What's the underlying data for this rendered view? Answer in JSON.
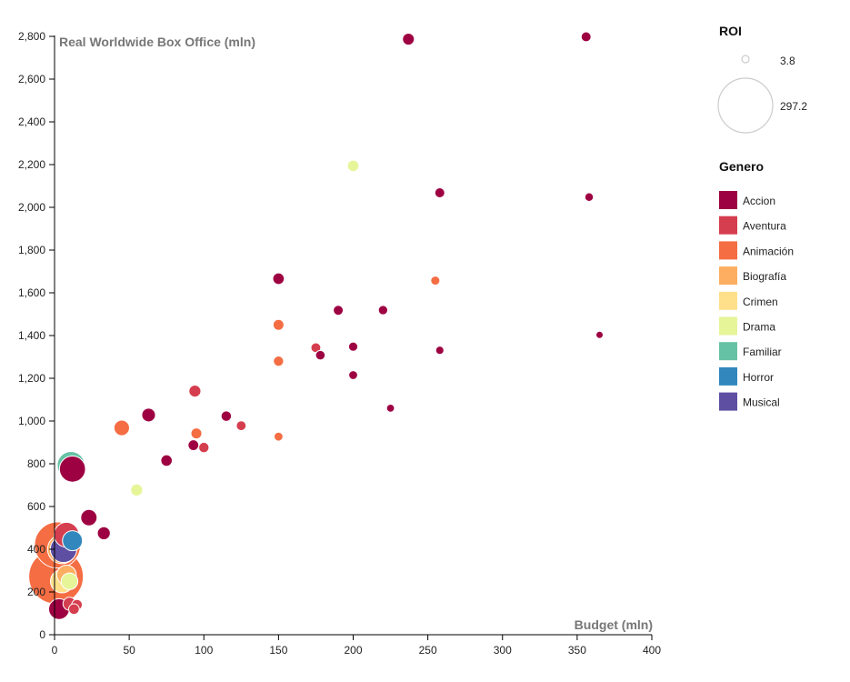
{
  "chart_data": {
    "type": "scatter",
    "xlabel": "Budget (mln)",
    "ylabel": "Real Worldwide Box Office (mln)",
    "xlim": [
      0,
      400
    ],
    "ylim": [
      0,
      2800
    ],
    "x_ticks": [
      0,
      50,
      100,
      150,
      200,
      250,
      300,
      350,
      400
    ],
    "y_ticks": [
      0,
      200,
      400,
      600,
      800,
      1000,
      1200,
      1400,
      1600,
      1800,
      2000,
      2200,
      2400,
      2600,
      2800
    ],
    "x_tick_labels": [
      "0",
      "50",
      "100",
      "150",
      "200",
      "250",
      "300",
      "350",
      "400"
    ],
    "y_tick_labels": [
      "0",
      "200",
      "400",
      "600",
      "800",
      "1,000",
      "1,200",
      "1,400",
      "1,600",
      "1,800",
      "2,000",
      "2,200",
      "2,400",
      "2,600",
      "2,800"
    ],
    "size_legend": {
      "title": "ROI",
      "min_label": "3.8",
      "max_label": "297.2",
      "min": 3.8,
      "max": 297.2
    },
    "color_legend": {
      "title": "Genero",
      "entries": [
        {
          "name": "Accion",
          "color": "#9e0142"
        },
        {
          "name": "Aventura",
          "color": "#d53e4f"
        },
        {
          "name": "Animación",
          "color": "#f46d43"
        },
        {
          "name": "Biografía",
          "color": "#fdae61"
        },
        {
          "name": "Crimen",
          "color": "#fee08b"
        },
        {
          "name": "Drama",
          "color": "#e6f598"
        },
        {
          "name": "Familiar",
          "color": "#66c2a5"
        },
        {
          "name": "Horror",
          "color": "#3288bd"
        },
        {
          "name": "Musical",
          "color": "#5e4fa2"
        }
      ]
    },
    "points": [
      {
        "budget": 237,
        "box_office": 2787,
        "genre": "Accion",
        "roi": 11.8
      },
      {
        "budget": 356,
        "box_office": 2798,
        "genre": "Accion",
        "roi": 7.9
      },
      {
        "budget": 258,
        "box_office": 2068,
        "genre": "Accion",
        "roi": 8.0
      },
      {
        "budget": 358,
        "box_office": 2048,
        "genre": "Accion",
        "roi": 5.7
      },
      {
        "budget": 365,
        "box_office": 1403,
        "genre": "Accion",
        "roi": 3.8
      },
      {
        "budget": 150,
        "box_office": 1666,
        "genre": "Accion",
        "roi": 11.1
      },
      {
        "budget": 190,
        "box_office": 1518,
        "genre": "Accion",
        "roi": 8.0
      },
      {
        "budget": 220,
        "box_office": 1519,
        "genre": "Accion",
        "roi": 6.9
      },
      {
        "budget": 178,
        "box_office": 1308,
        "genre": "Accion",
        "roi": 7.3
      },
      {
        "budget": 200,
        "box_office": 1348,
        "genre": "Accion",
        "roi": 6.7
      },
      {
        "budget": 258,
        "box_office": 1331,
        "genre": "Accion",
        "roi": 5.2
      },
      {
        "budget": 200,
        "box_office": 1215,
        "genre": "Accion",
        "roi": 6.1
      },
      {
        "budget": 225,
        "box_office": 1060,
        "genre": "Accion",
        "roi": 4.7
      },
      {
        "budget": 63,
        "box_office": 1028,
        "genre": "Accion",
        "roi": 16.3
      },
      {
        "budget": 115,
        "box_office": 1023,
        "genre": "Accion",
        "roi": 8.9
      },
      {
        "budget": 93,
        "box_office": 887,
        "genre": "Accion",
        "roi": 9.5
      },
      {
        "budget": 75,
        "box_office": 815,
        "genre": "Accion",
        "roi": 10.9
      },
      {
        "budget": 12,
        "box_office": 775,
        "genre": "Accion",
        "roi": 64.6
      },
      {
        "budget": 23,
        "box_office": 548,
        "genre": "Accion",
        "roi": 23.8
      },
      {
        "budget": 33,
        "box_office": 475,
        "genre": "Accion",
        "roi": 14.4
      },
      {
        "budget": 3,
        "box_office": 120,
        "genre": "Accion",
        "roi": 40.0
      },
      {
        "budget": 94,
        "box_office": 1140,
        "genre": "Aventura",
        "roi": 12.1
      },
      {
        "budget": 175,
        "box_office": 1343,
        "genre": "Aventura",
        "roi": 7.7
      },
      {
        "budget": 125,
        "box_office": 978,
        "genre": "Aventura",
        "roi": 7.8
      },
      {
        "budget": 100,
        "box_office": 876,
        "genre": "Aventura",
        "roi": 8.8
      },
      {
        "budget": 8,
        "box_office": 468,
        "genre": "Aventura",
        "roi": 58.5
      },
      {
        "budget": 15,
        "box_office": 140,
        "genre": "Aventura",
        "roi": 9.3
      },
      {
        "budget": 13,
        "box_office": 120,
        "genre": "Aventura",
        "roi": 9.2
      },
      {
        "budget": 10,
        "box_office": 145,
        "genre": "Aventura",
        "roi": 14.5
      },
      {
        "budget": 150,
        "box_office": 1450,
        "genre": "Animación",
        "roi": 9.7
      },
      {
        "budget": 150,
        "box_office": 1280,
        "genre": "Animación",
        "roi": 8.5
      },
      {
        "budget": 255,
        "box_office": 1657,
        "genre": "Animación",
        "roi": 6.5
      },
      {
        "budget": 45,
        "box_office": 968,
        "genre": "Animación",
        "roi": 21.5
      },
      {
        "budget": 95,
        "box_office": 942,
        "genre": "Animación",
        "roi": 9.9
      },
      {
        "budget": 150,
        "box_office": 927,
        "genre": "Animación",
        "roi": 6.2
      },
      {
        "budget": 2,
        "box_office": 420,
        "genre": "Animación",
        "roi": 210.0
      },
      {
        "budget": 1,
        "box_office": 272,
        "genre": "Animación",
        "roi": 297.2
      },
      {
        "budget": 5,
        "box_office": 400,
        "genre": "Biografía",
        "roi": 80.0
      },
      {
        "budget": 8,
        "box_office": 280,
        "genre": "Biografía",
        "roi": 35.0
      },
      {
        "budget": 5,
        "box_office": 250,
        "genre": "Crimen",
        "roi": 50.0
      },
      {
        "budget": 200,
        "box_office": 2194,
        "genre": "Drama",
        "roi": 11.0
      },
      {
        "budget": 55,
        "box_office": 677,
        "genre": "Drama",
        "roi": 12.3
      },
      {
        "budget": 10,
        "box_office": 250,
        "genre": "Drama",
        "roi": 25.0
      },
      {
        "budget": 11,
        "box_office": 793,
        "genre": "Familiar",
        "roi": 72.1
      },
      {
        "budget": 12,
        "box_office": 440,
        "genre": "Horror",
        "roi": 36.7
      },
      {
        "budget": 6,
        "box_office": 400,
        "genre": "Musical",
        "roi": 66.7
      }
    ]
  }
}
